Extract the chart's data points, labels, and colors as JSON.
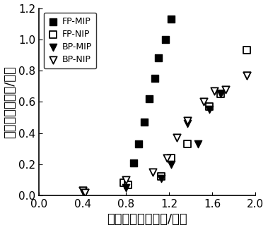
{
  "FP_MIP_x": [
    0.87,
    0.92,
    0.97,
    1.02,
    1.07,
    1.1,
    1.17,
    1.22
  ],
  "FP_MIP_y": [
    0.21,
    0.33,
    0.47,
    0.62,
    0.75,
    0.88,
    1.0,
    1.13
  ],
  "FP_NIP_x": [
    0.78,
    0.82,
    1.13,
    1.22,
    1.37,
    1.57,
    1.68,
    1.92
  ],
  "FP_NIP_y": [
    0.08,
    0.07,
    0.12,
    0.24,
    0.33,
    0.57,
    0.65,
    0.93
  ],
  "BP_MIP_x": [
    0.4,
    0.42,
    0.8,
    1.13,
    1.22,
    1.37,
    1.47,
    1.57,
    1.68,
    1.92
  ],
  "BP_MIP_y": [
    0.03,
    0.02,
    0.05,
    0.11,
    0.2,
    0.46,
    0.33,
    0.55,
    0.65,
    0.77
  ],
  "BP_NIP_x": [
    0.4,
    0.42,
    0.8,
    1.05,
    1.18,
    1.27,
    1.37,
    1.52,
    1.62,
    1.72,
    1.92
  ],
  "BP_NIP_y": [
    0.03,
    0.02,
    0.1,
    0.15,
    0.24,
    0.37,
    0.48,
    0.6,
    0.67,
    0.68,
    0.77
  ],
  "xlabel": "平衡浓度（毫摩尔/升）",
  "ylabel": "吸附量（毫摩尔/克）",
  "xlim": [
    0.0,
    2.0
  ],
  "ylim": [
    0.0,
    1.2
  ],
  "xticks": [
    0.0,
    0.4,
    0.8,
    1.2,
    1.6,
    2.0
  ],
  "yticks": [
    0.0,
    0.2,
    0.4,
    0.6,
    0.8,
    1.0,
    1.2
  ],
  "legend_labels": [
    "FP-MIP",
    "FP-NIP",
    "BP-MIP",
    "BP-NIP"
  ],
  "marker_size": 55,
  "font_size_label": 13,
  "font_size_tick": 11,
  "font_size_legend": 9,
  "bg_color": "#ffffff"
}
